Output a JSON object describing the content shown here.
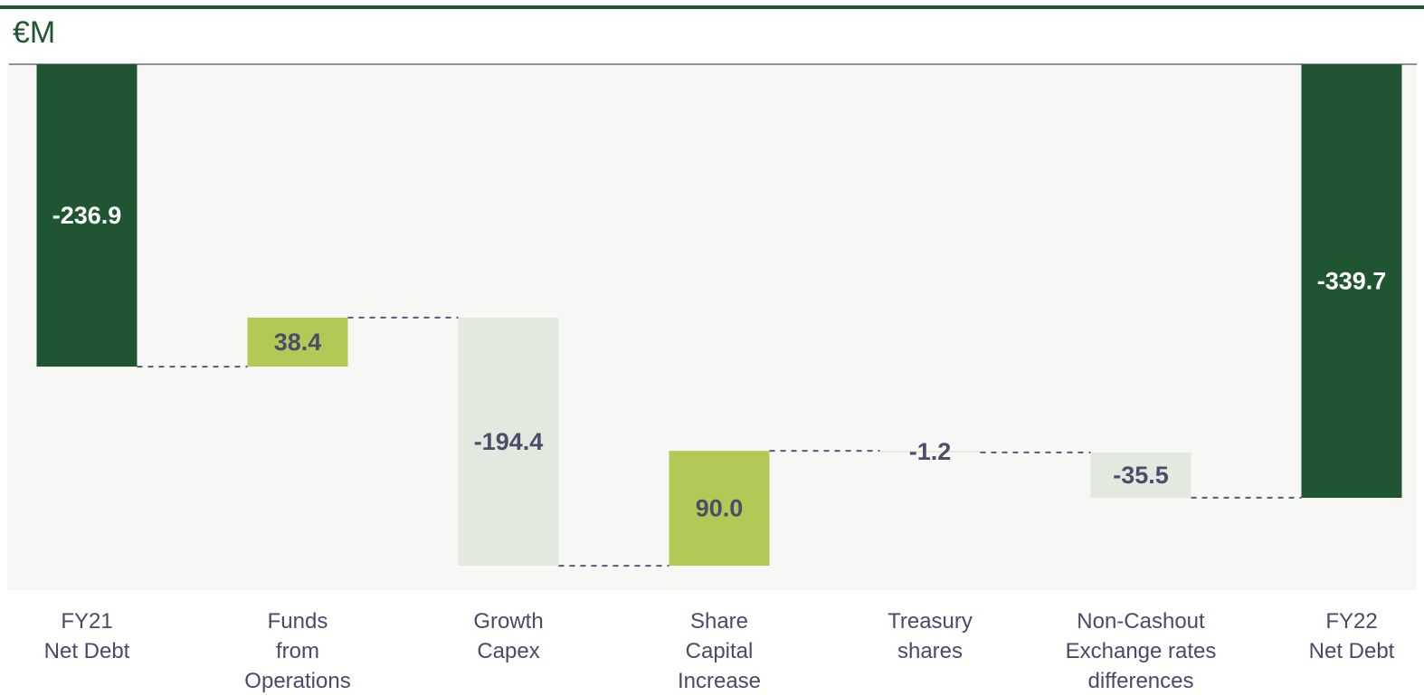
{
  "chart_data": {
    "type": "waterfall",
    "unit": "€M",
    "categories": [
      "FY21\nNet Debt",
      "Funds\nfrom\nOperations",
      "Growth\nCapex",
      "Share\nCapital\nIncrease",
      "Treasury\nshares",
      "Non-Cashout\nExchange rates\ndifferences",
      "FY22\nNet Debt"
    ],
    "values": [
      -236.9,
      38.4,
      -194.4,
      90.0,
      -1.2,
      -35.5,
      -339.7
    ],
    "value_labels": [
      "-236.9",
      "38.4",
      "-194.4",
      "90.0",
      "-1.2",
      "-35.5",
      "-339.7"
    ],
    "total_color": "#1f5631",
    "increase_color": "#b3c955",
    "decrease_color": "#e3e9df",
    "ylim": [
      -412,
      0
    ]
  }
}
